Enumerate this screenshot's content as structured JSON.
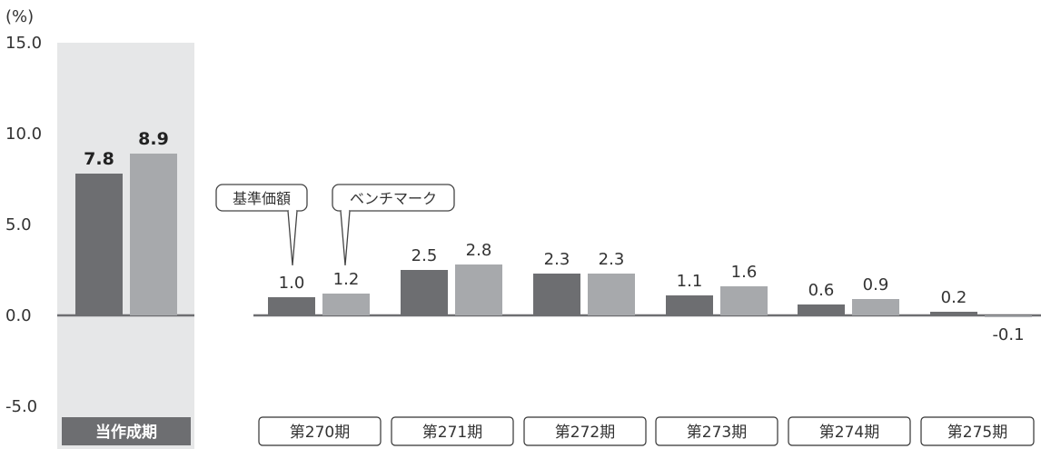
{
  "chart_data": {
    "type": "bar",
    "ylabel": "(%)",
    "ylim": [
      -5,
      15
    ],
    "yticks": [
      "15.0",
      "10.0",
      "5.0",
      "0.0",
      "-5.0"
    ],
    "categories": [
      "当作成期",
      "第270期",
      "第271期",
      "第272期",
      "第273期",
      "第274期",
      "第275期"
    ],
    "series": [
      {
        "name": "基準価額",
        "values": [
          7.8,
          1.0,
          2.5,
          2.3,
          1.1,
          0.6,
          0.2
        ],
        "labels": [
          "7.8",
          "1.0",
          "2.5",
          "2.3",
          "1.1",
          "0.6",
          "0.2"
        ],
        "color": "#6d6e71"
      },
      {
        "name": "ベンチマーク",
        "values": [
          8.9,
          1.2,
          2.8,
          2.3,
          1.6,
          0.9,
          -0.1
        ],
        "labels": [
          "8.9",
          "1.2",
          "2.8",
          "2.3",
          "1.6",
          "0.9",
          "-0.1"
        ],
        "color": "#a7a9ac"
      }
    ],
    "highlight_category": "当作成期",
    "highlight_bg": "#e6e7e8",
    "highlight_label_bg": "#6d6e71",
    "axis_color": "#6d6e71"
  }
}
